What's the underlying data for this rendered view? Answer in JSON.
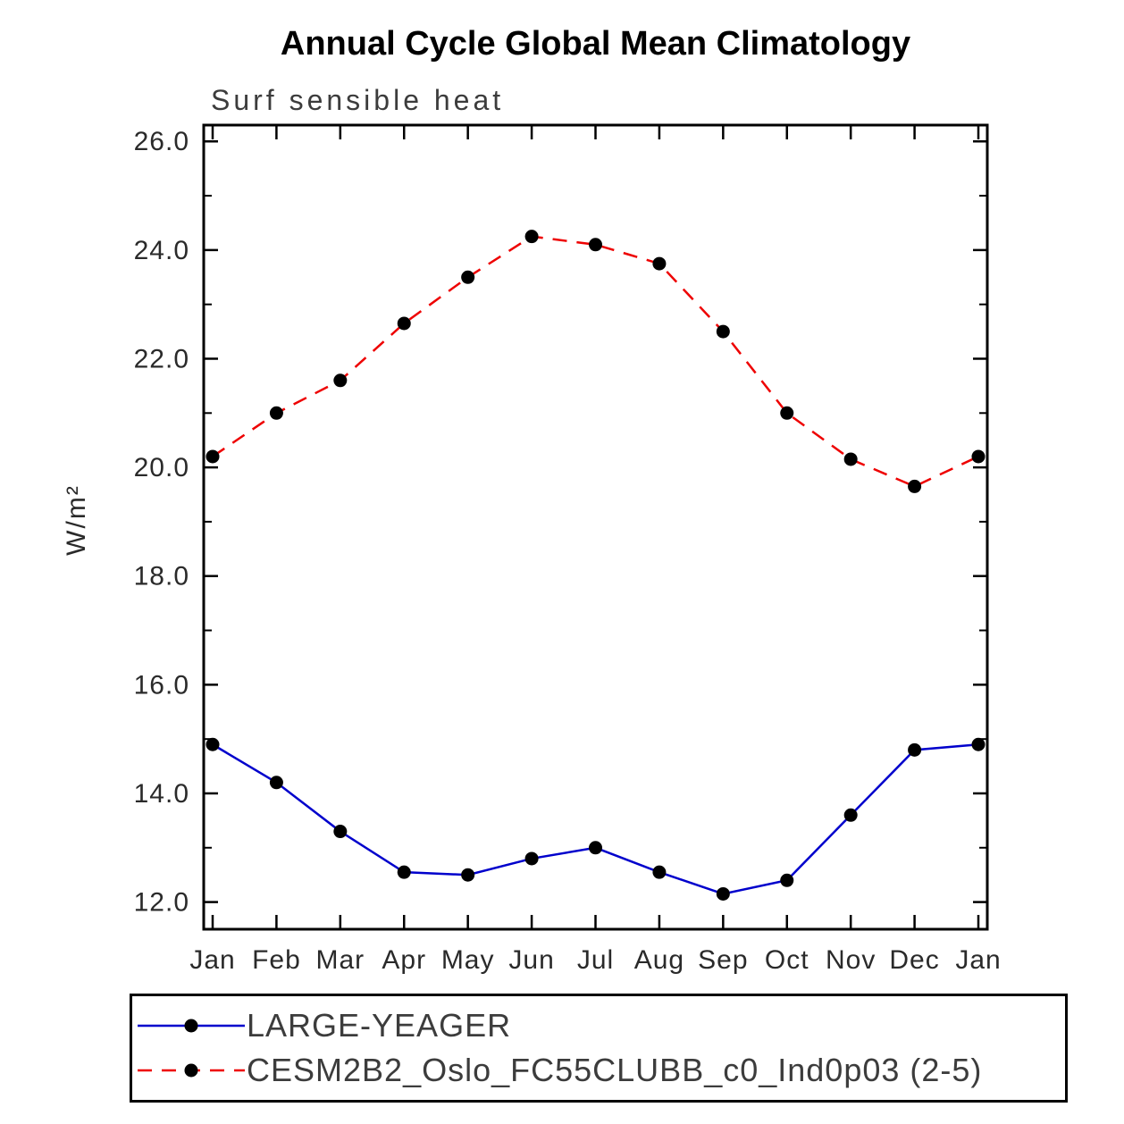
{
  "title": "Annual Cycle Global Mean Climatology",
  "subtitle": "Surf sensible heat",
  "chart_data": {
    "type": "line",
    "title": "Annual Cycle Global Mean Climatology",
    "subtitle": "Surf sensible heat",
    "ylabel": "W/m²",
    "xlabel": "",
    "categories": [
      "Jan",
      "Feb",
      "Mar",
      "Apr",
      "May",
      "Jun",
      "Jul",
      "Aug",
      "Sep",
      "Oct",
      "Nov",
      "Dec",
      "Jan"
    ],
    "series": [
      {
        "name": "LARGE-YEAGER",
        "color": "#0000cc",
        "line_style": "solid",
        "marker": "filled-circle",
        "values": [
          14.9,
          14.2,
          13.3,
          12.55,
          12.5,
          12.8,
          13.0,
          12.55,
          12.15,
          12.4,
          13.6,
          14.8,
          14.9
        ]
      },
      {
        "name": "CESM2B2_Oslo_FC55CLUBB_c0_Ind0p03 (2-5)",
        "color": "#ee0000",
        "line_style": "dashed",
        "marker": "filled-circle",
        "values": [
          20.2,
          21.0,
          21.6,
          22.65,
          23.5,
          24.25,
          24.1,
          23.75,
          22.5,
          21.0,
          20.15,
          19.65,
          20.2
        ]
      }
    ],
    "ylim": [
      11.5,
      26.3
    ],
    "yticks_major": [
      12.0,
      14.0,
      16.0,
      18.0,
      20.0,
      22.0,
      24.0,
      26.0
    ],
    "yticks_minor": [
      13.0,
      15.0,
      17.0,
      19.0,
      21.0,
      23.0,
      25.0
    ],
    "marker_color": "#000000",
    "grid": false,
    "legend_position": "bottom",
    "frame_color": "#000000"
  }
}
